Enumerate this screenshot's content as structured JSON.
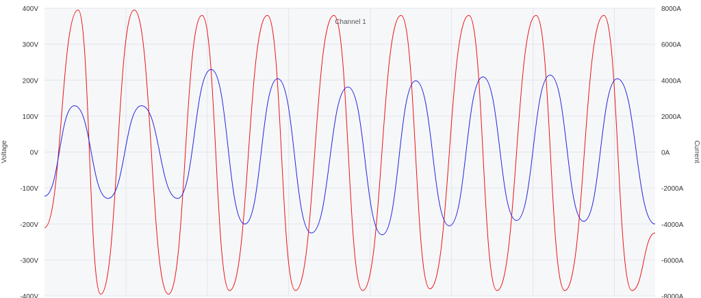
{
  "chart_data": {
    "type": "line",
    "title": "Channel 1",
    "xlabel": "",
    "ylabel": "Voltage",
    "y2label": "Current",
    "ylim": [
      -400,
      400
    ],
    "y2lim": [
      -8000,
      8000
    ],
    "yticks": [
      "400V",
      "300V",
      "200V",
      "100V",
      "0V",
      "-100V",
      "-200V",
      "-300V",
      "-400V"
    ],
    "y2ticks": [
      "8000A",
      "6000A",
      "4000A",
      "2000A",
      "0A",
      "-2000A",
      "-4000A",
      "-6000A",
      "-8000A"
    ],
    "grid": true,
    "xlim": [
      0,
      1
    ],
    "series": [
      {
        "axis": "left",
        "color": "#ee1111",
        "x": [
          0.0,
          0.055,
          0.092,
          0.147,
          0.203,
          0.258,
          0.303,
          0.365,
          0.411,
          0.474,
          0.521,
          0.584,
          0.631,
          0.695,
          0.741,
          0.805,
          0.852,
          0.916,
          0.962,
          1.0
        ],
        "values": [
          -210,
          395,
          -395,
          395,
          -395,
          380,
          -385,
          380,
          -385,
          380,
          -385,
          380,
          -380,
          380,
          -385,
          380,
          -385,
          380,
          -385,
          -225
        ]
      },
      {
        "axis": "right",
        "color": "#2222dd",
        "x": [
          0.0,
          0.049,
          0.104,
          0.159,
          0.218,
          0.273,
          0.328,
          0.382,
          0.437,
          0.497,
          0.553,
          0.608,
          0.663,
          0.718,
          0.773,
          0.828,
          0.883,
          0.938,
          1.0
        ],
        "values": [
          -2450,
          2580,
          -2580,
          2580,
          -2580,
          4600,
          -4000,
          4080,
          -4500,
          3620,
          -4600,
          3960,
          -4100,
          4180,
          -3800,
          4280,
          -3850,
          4080,
          -4000
        ]
      }
    ]
  }
}
